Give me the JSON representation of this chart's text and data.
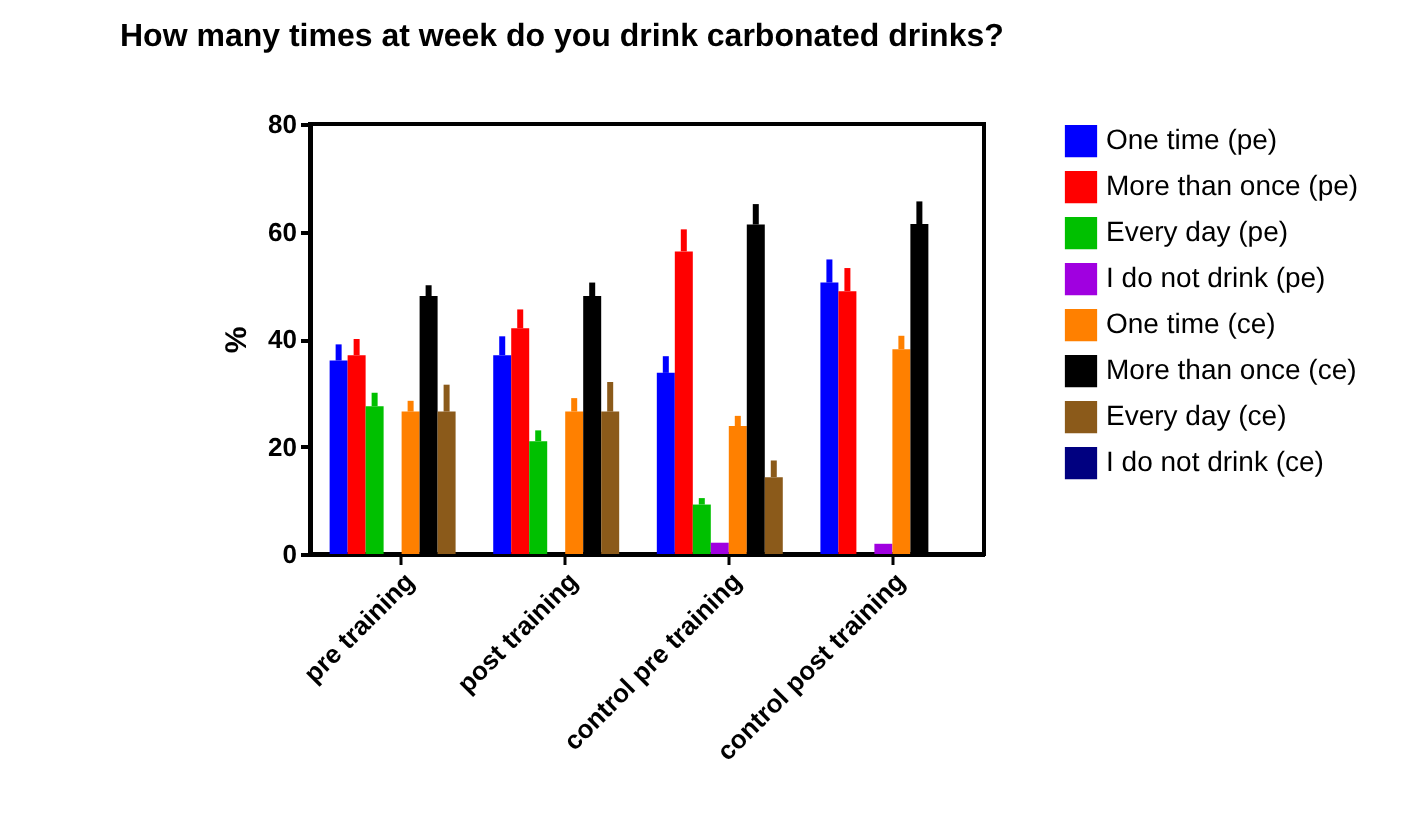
{
  "chart_data": {
    "type": "bar",
    "title": "How many times at week do you drink carbonated drinks?",
    "ylabel": "%",
    "categories": [
      "pre training",
      "post training",
      "control pre training",
      "control post training"
    ],
    "ylim": [
      0,
      80
    ],
    "yticks": [
      0,
      20,
      40,
      60,
      80
    ],
    "grid": false,
    "legend": "right",
    "series": [
      {
        "name": "One time (pe)",
        "color": "#0000ff",
        "values": [
          36,
          37,
          33.7,
          50.5
        ],
        "errors": [
          [
            36,
            39
          ],
          [
            37,
            40.5
          ],
          [
            33.7,
            36.8
          ],
          [
            50.5,
            54.8
          ]
        ]
      },
      {
        "name": "More than once (pe)",
        "color": "#ff0000",
        "values": [
          37,
          42,
          56.3,
          48.9
        ],
        "errors": [
          [
            37,
            40
          ],
          [
            42,
            45.5
          ],
          [
            56.3,
            60.4
          ],
          [
            48.9,
            53.2
          ]
        ]
      },
      {
        "name": "Every day (pe)",
        "color": "#00c000",
        "values": [
          27.5,
          21,
          9.2,
          null
        ],
        "errors": [
          [
            27.5,
            30
          ],
          [
            21,
            23
          ],
          [
            9.2,
            10.4
          ],
          null
        ]
      },
      {
        "name": "I do not drink (pe)",
        "color": "#a000e0",
        "values": [
          null,
          null,
          2.1,
          1.9
        ]
      },
      {
        "name": "One time (ce)",
        "color": "#ff8000",
        "values": [
          26.5,
          26.5,
          23.8,
          38.1
        ],
        "errors": [
          [
            26.5,
            28.5
          ],
          [
            26.5,
            29
          ],
          [
            23.8,
            25.7
          ],
          [
            38.1,
            40.6
          ]
        ]
      },
      {
        "name": "More than once (ce)",
        "color": "#000000",
        "values": [
          48,
          48,
          61.3,
          61.4
        ],
        "errors": [
          [
            48,
            50
          ],
          [
            48,
            50.5
          ],
          [
            61.3,
            65.1
          ],
          [
            61.4,
            65.6
          ]
        ]
      },
      {
        "name": "Every day (ce)",
        "color": "#8b5a1a",
        "values": [
          26.5,
          26.5,
          14.3,
          null
        ],
        "errors": [
          [
            26.5,
            31.5
          ],
          [
            26.5,
            32
          ],
          [
            14.3,
            17.4
          ],
          null
        ]
      },
      {
        "name": "I do not drink (ce)",
        "color": "#000080",
        "values": [
          null,
          null,
          null,
          null
        ]
      }
    ]
  }
}
